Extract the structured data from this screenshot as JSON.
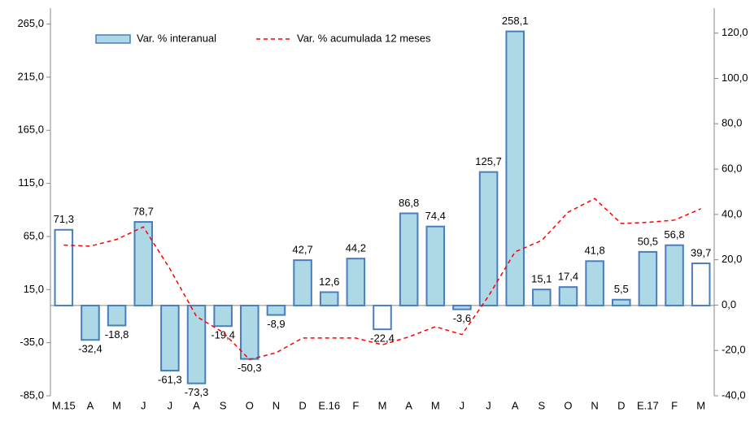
{
  "chart_data": {
    "type": "bar",
    "categories": [
      "M.15",
      "A",
      "M",
      "J",
      "J",
      "A",
      "S",
      "O",
      "N",
      "D",
      "E.16",
      "F",
      "M",
      "A",
      "M",
      "J",
      "J",
      "A",
      "S",
      "O",
      "N",
      "D",
      "E.17",
      "F",
      "M"
    ],
    "series": [
      {
        "name": "Var. % interanual",
        "type": "bar",
        "color": "#add8e6",
        "border": "#4a7ebb",
        "colors": [
          "#ffffff",
          "#add8e6",
          "#add8e6",
          "#add8e6",
          "#add8e6",
          "#add8e6",
          "#add8e6",
          "#add8e6",
          "#add8e6",
          "#add8e6",
          "#add8e6",
          "#add8e6",
          "#ffffff",
          "#add8e6",
          "#add8e6",
          "#add8e6",
          "#add8e6",
          "#add8e6",
          "#add8e6",
          "#add8e6",
          "#add8e6",
          "#add8e6",
          "#add8e6",
          "#add8e6",
          "#ffffff"
        ],
        "values": [
          71.3,
          -32.4,
          -18.8,
          78.7,
          -61.3,
          -73.3,
          -19.4,
          -50.3,
          -8.9,
          42.7,
          12.6,
          44.2,
          -22.4,
          86.8,
          74.4,
          -3.6,
          125.7,
          258.1,
          15.1,
          17.4,
          41.8,
          5.5,
          50.5,
          56.8,
          39.7
        ],
        "value_labels": [
          "71,3",
          "-32,4",
          "-18,8",
          "78,7",
          "-61,3",
          "-73,3",
          "-19,4",
          "-50,3",
          "-8,9",
          "42,7",
          "12,6",
          "44,2",
          "-22,4",
          "86,8",
          "74,4",
          "-3,6",
          "125,7",
          "258,1",
          "15,1",
          "17,4",
          "41,8",
          "5,5",
          "50,5",
          "56,8",
          "39,7"
        ]
      },
      {
        "name": "Var. % acumulada 12 meses",
        "type": "line",
        "axis": "y2",
        "color": "#ff0000",
        "dashed": true,
        "values": [
          26.5,
          26,
          29,
          34.5,
          16,
          -5,
          -12,
          -24,
          -21,
          -14.5,
          -14.5,
          -14.5,
          -17.5,
          -14,
          -9.5,
          -13,
          4,
          23.5,
          28.5,
          41,
          47,
          36,
          36.5,
          37.5,
          42.5
        ]
      }
    ],
    "ylim": [
      -85,
      280
    ],
    "yticks": [
      {
        "value": -85,
        "label": "-85,0"
      },
      {
        "value": -35,
        "label": "-35,0"
      },
      {
        "value": 15,
        "label": "15,0"
      },
      {
        "value": 65,
        "label": "65,0"
      },
      {
        "value": 115,
        "label": "115,0"
      },
      {
        "value": 165,
        "label": "165,0"
      },
      {
        "value": 215,
        "label": "215,0"
      },
      {
        "value": 265,
        "label": "265,0"
      }
    ],
    "y2lim": [
      -40,
      131
    ],
    "y2ticks": [
      {
        "value": -40,
        "label": "-40,0"
      },
      {
        "value": -20,
        "label": "-20,0"
      },
      {
        "value": 0,
        "label": "0,0"
      },
      {
        "value": 20,
        "label": "20,0"
      },
      {
        "value": 40,
        "label": "40,0"
      },
      {
        "value": 60,
        "label": "60,0"
      },
      {
        "value": 80,
        "label": "80,0"
      },
      {
        "value": 100,
        "label": "100,0"
      },
      {
        "value": 120,
        "label": "120,0"
      }
    ],
    "legend": "top-left"
  }
}
